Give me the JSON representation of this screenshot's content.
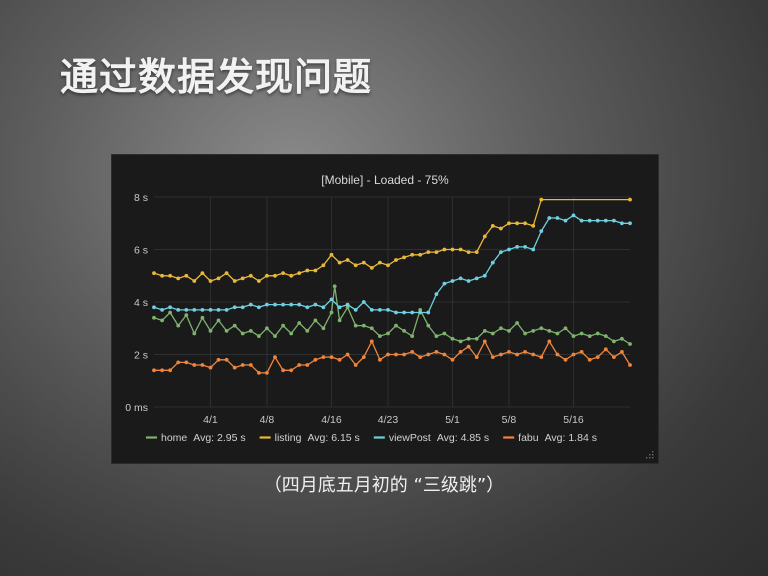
{
  "slide": {
    "title": "通过数据发现问题",
    "caption": "（四月底五月初的 “三级跳”）"
  },
  "chart_data": {
    "type": "line",
    "title": "[Mobile] - Loaded - 75%",
    "xlabel": "",
    "ylabel": "",
    "x_start": "3/25",
    "x_end": "5/25",
    "x_ticks": [
      {
        "label": "4/1",
        "day": 7
      },
      {
        "label": "4/8",
        "day": 14
      },
      {
        "label": "4/16",
        "day": 22
      },
      {
        "label": "4/23",
        "day": 29
      },
      {
        "label": "5/1",
        "day": 37
      },
      {
        "label": "5/8",
        "day": 44
      },
      {
        "label": "5/16",
        "day": 52
      }
    ],
    "y_ticks": [
      "0 ms",
      "2 s",
      "4 s",
      "6 s",
      "8 s"
    ],
    "ylim": [
      0,
      8
    ],
    "grid": true,
    "legend_position": "bottom",
    "series": [
      {
        "name": "home",
        "avg_label": "Avg: 2.95 s",
        "color": "#7eb26d",
        "x": [
          0,
          1,
          2,
          3,
          4,
          5,
          6,
          7,
          8,
          9,
          10,
          11,
          12,
          13,
          14,
          15,
          16,
          17,
          18,
          19,
          20,
          21,
          22,
          22.4,
          23,
          24,
          25,
          26,
          27,
          28,
          29,
          30,
          31,
          32,
          33,
          34,
          35,
          36,
          37,
          38,
          39,
          40,
          41,
          42,
          43,
          44,
          45,
          46,
          47,
          48,
          49,
          50,
          51,
          52,
          53,
          54,
          55,
          56,
          57,
          58,
          59
        ],
        "y": [
          3.4,
          3.3,
          3.6,
          3.1,
          3.5,
          2.8,
          3.4,
          2.9,
          3.3,
          2.9,
          3.1,
          2.8,
          2.9,
          2.7,
          3.0,
          2.7,
          3.1,
          2.8,
          3.2,
          2.9,
          3.3,
          3.0,
          3.6,
          4.6,
          3.3,
          3.8,
          3.1,
          3.1,
          3.0,
          2.7,
          2.8,
          3.1,
          2.9,
          2.7,
          3.7,
          3.1,
          2.7,
          2.8,
          2.6,
          2.5,
          2.6,
          2.6,
          2.9,
          2.8,
          3.0,
          2.9,
          3.2,
          2.8,
          2.9,
          3.0,
          2.9,
          2.8,
          3.0,
          2.7,
          2.8,
          2.7,
          2.8,
          2.7,
          2.5,
          2.6,
          2.4
        ]
      },
      {
        "name": "listing",
        "avg_label": "Avg: 6.15 s",
        "color": "#eab839",
        "x": [
          0,
          1,
          2,
          3,
          4,
          5,
          6,
          7,
          8,
          9,
          10,
          11,
          12,
          13,
          14,
          15,
          16,
          17,
          18,
          19,
          20,
          21,
          22,
          23,
          24,
          25,
          26,
          27,
          28,
          29,
          30,
          31,
          32,
          33,
          34,
          35,
          36,
          37,
          38,
          39,
          40,
          41,
          42,
          43,
          44,
          45,
          46,
          47,
          48,
          59
        ],
        "y": [
          5.1,
          5.0,
          5.0,
          4.9,
          5.0,
          4.8,
          5.1,
          4.8,
          4.9,
          5.1,
          4.8,
          4.9,
          5.0,
          4.8,
          5.0,
          5.0,
          5.1,
          5.0,
          5.1,
          5.2,
          5.2,
          5.4,
          5.8,
          5.5,
          5.6,
          5.4,
          5.5,
          5.3,
          5.5,
          5.4,
          5.6,
          5.7,
          5.8,
          5.8,
          5.9,
          5.9,
          6.0,
          6.0,
          6.0,
          5.9,
          5.9,
          6.5,
          6.9,
          6.8,
          7.0,
          7.0,
          7.0,
          6.9,
          7.9,
          7.9
        ]
      },
      {
        "name": "viewPost",
        "avg_label": "Avg: 4.85 s",
        "color": "#6ed0e0",
        "x": [
          0,
          1,
          2,
          3,
          4,
          5,
          6,
          7,
          8,
          9,
          10,
          11,
          12,
          13,
          14,
          15,
          16,
          17,
          18,
          19,
          20,
          21,
          22,
          23,
          24,
          25,
          26,
          27,
          28,
          29,
          30,
          31,
          32,
          33,
          34,
          35,
          36,
          37,
          38,
          39,
          40,
          41,
          42,
          43,
          44,
          45,
          46,
          47,
          48,
          49,
          50,
          51,
          52,
          53,
          54,
          55,
          56,
          57,
          58,
          59
        ],
        "y": [
          3.8,
          3.7,
          3.8,
          3.7,
          3.7,
          3.7,
          3.7,
          3.7,
          3.7,
          3.7,
          3.8,
          3.8,
          3.9,
          3.8,
          3.9,
          3.9,
          3.9,
          3.9,
          3.9,
          3.8,
          3.9,
          3.8,
          4.1,
          3.8,
          3.9,
          3.7,
          4.0,
          3.7,
          3.7,
          3.7,
          3.6,
          3.6,
          3.6,
          3.6,
          3.6,
          4.3,
          4.7,
          4.8,
          4.9,
          4.8,
          4.9,
          5.0,
          5.5,
          5.9,
          6.0,
          6.1,
          6.1,
          6.0,
          6.7,
          7.2,
          7.2,
          7.1,
          7.3,
          7.1,
          7.1,
          7.1,
          7.1,
          7.1,
          7.0,
          7.0
        ]
      },
      {
        "name": "fabu",
        "avg_label": "Avg: 1.84 s",
        "color": "#ef843c",
        "x": [
          0,
          1,
          2,
          3,
          4,
          5,
          6,
          7,
          8,
          9,
          10,
          11,
          12,
          13,
          14,
          15,
          16,
          17,
          18,
          19,
          20,
          21,
          22,
          23,
          24,
          25,
          26,
          27,
          28,
          29,
          30,
          31,
          32,
          33,
          34,
          35,
          36,
          37,
          38,
          39,
          40,
          41,
          42,
          43,
          44,
          45,
          46,
          47,
          48,
          49,
          50,
          51,
          52,
          53,
          54,
          55,
          56,
          57,
          58,
          59
        ],
        "y": [
          1.4,
          1.4,
          1.4,
          1.7,
          1.7,
          1.6,
          1.6,
          1.5,
          1.8,
          1.8,
          1.5,
          1.6,
          1.6,
          1.3,
          1.3,
          1.9,
          1.4,
          1.4,
          1.6,
          1.6,
          1.8,
          1.9,
          1.9,
          1.8,
          2.0,
          1.6,
          1.9,
          2.5,
          1.8,
          2.0,
          2.0,
          2.0,
          2.1,
          1.9,
          2.0,
          2.1,
          2.0,
          1.8,
          2.1,
          2.3,
          1.9,
          2.5,
          1.9,
          2.0,
          2.1,
          2.0,
          2.1,
          2.0,
          1.9,
          2.5,
          2.0,
          1.8,
          2.0,
          2.1,
          1.8,
          1.9,
          2.2,
          1.9,
          2.1,
          1.6
        ]
      }
    ]
  }
}
